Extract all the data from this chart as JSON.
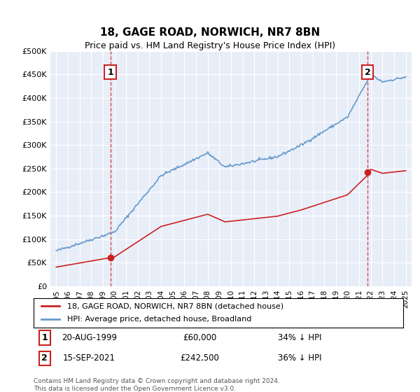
{
  "title": "18, GAGE ROAD, NORWICH, NR7 8BN",
  "subtitle": "Price paid vs. HM Land Registry's House Price Index (HPI)",
  "ylabel": "",
  "bg_color": "#e8eef8",
  "plot_bg": "#e8eef8",
  "sale1_date_x": 1999.64,
  "sale1_price": 60000,
  "sale2_date_x": 2021.71,
  "sale2_price": 242500,
  "ylim_min": 0,
  "ylim_max": 500000,
  "xlim_min": 1994.5,
  "xlim_max": 2025.5,
  "yticks": [
    0,
    50000,
    100000,
    150000,
    200000,
    250000,
    300000,
    350000,
    400000,
    450000,
    500000
  ],
  "ytick_labels": [
    "£0",
    "£50K",
    "£100K",
    "£150K",
    "£200K",
    "£250K",
    "£300K",
    "£350K",
    "£400K",
    "£450K",
    "£500K"
  ],
  "xtick_years": [
    1995,
    1996,
    1997,
    1998,
    1999,
    2000,
    2001,
    2002,
    2003,
    2004,
    2005,
    2006,
    2007,
    2008,
    2009,
    2010,
    2011,
    2012,
    2013,
    2014,
    2015,
    2016,
    2017,
    2018,
    2019,
    2020,
    2021,
    2022,
    2023,
    2024,
    2025
  ],
  "hpi_color": "#6699cc",
  "price_paid_color": "#cc2222",
  "legend_label1": "18, GAGE ROAD, NORWICH, NR7 8BN (detached house)",
  "legend_label2": "HPI: Average price, detached house, Broadland",
  "note1_label": "1",
  "note1_date": "20-AUG-1999",
  "note1_price": "£60,000",
  "note1_hpi": "34% ↓ HPI",
  "note2_label": "2",
  "note2_date": "15-SEP-2021",
  "note2_price": "£242,500",
  "note2_hpi": "36% ↓ HPI",
  "footer": "Contains HM Land Registry data © Crown copyright and database right 2024.\nThis data is licensed under the Open Government Licence v3.0."
}
